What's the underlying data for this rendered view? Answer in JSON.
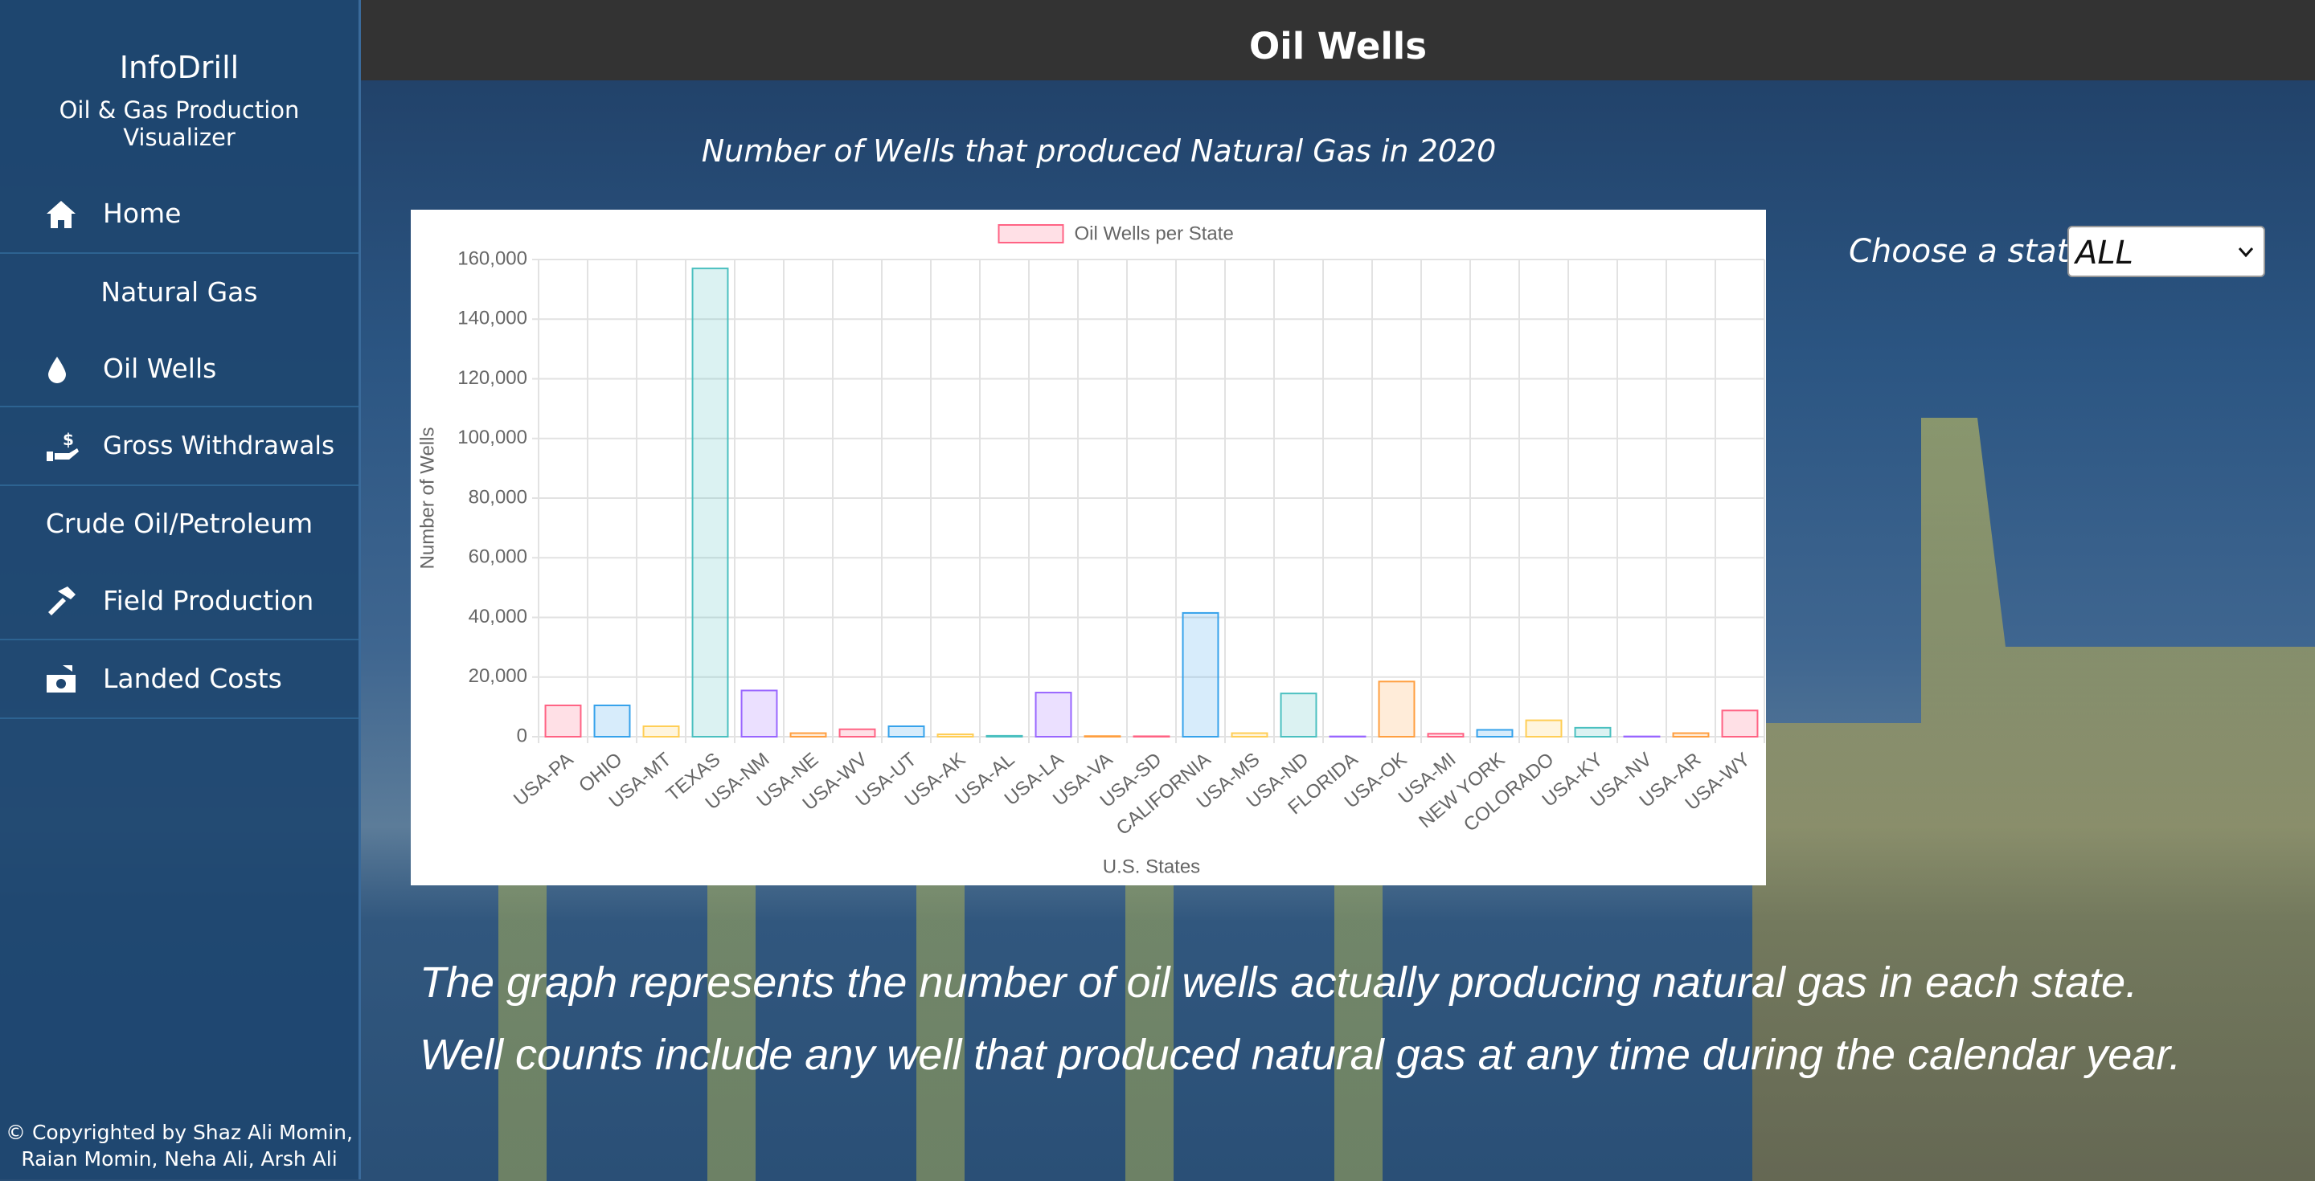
{
  "sidebar": {
    "brand": "InfoDrill",
    "tagline": "Oil & Gas Production Visualizer",
    "home": "Home",
    "section_gas": "Natural Gas",
    "oil_wells": "Oil Wells",
    "gross_withdrawals": "Gross Withdrawals",
    "section_crude": "Crude Oil/Petroleum",
    "field_production": "Field Production",
    "landed_costs": "Landed Costs",
    "copyright": [
      "© Copyrighted by Shaz Ali Momin,",
      "Raian Momin, Neha Ali, Arsh Ali"
    ]
  },
  "header": {
    "title": "Oil Wells"
  },
  "state_picker": {
    "label": "Choose a state:",
    "value": "ALL"
  },
  "description": [
    "The graph represents the number of oil wells actually producing natural gas in each state.",
    "Well counts include any well that produced natural gas at any time during the calendar year."
  ],
  "chart_data": {
    "type": "bar",
    "title": "Number of Wells that produced Natural Gas in 2020",
    "x_label": "U.S. States",
    "y_label": "Number of Wells",
    "categories": [
      "USA-PA",
      "OHIO",
      "USA-MT",
      "TEXAS",
      "USA-NM",
      "USA-NE",
      "USA-WV",
      "USA-UT",
      "USA-AK",
      "USA-AL",
      "USA-LA",
      "USA-VA",
      "USA-SD",
      "CALIFORNIA",
      "USA-MS",
      "USA-ND",
      "FLORIDA",
      "USA-OK",
      "USA-MI",
      "NEW YORK",
      "COLORADO",
      "USA-KY",
      "USA-NV",
      "USA-AR",
      "USA-WY"
    ],
    "series": [
      {
        "name": "Oil Wells per State",
        "color": "#ff6384",
        "values": [
          10500,
          10500,
          3500,
          157000,
          15500,
          1200,
          2500,
          3500,
          800,
          300,
          14800,
          200,
          150,
          41500,
          1200,
          14500,
          100,
          18500,
          1000,
          2300,
          5500,
          3000,
          100,
          1200,
          8800
        ],
        "colors": [
          "#ff6384",
          "#36a2eb",
          "#ffce56",
          "#4bc0c0",
          "#9966ff",
          "#ff9f40",
          "#ff6384",
          "#36a2eb",
          "#ffce56",
          "#4bc0c0",
          "#9966ff",
          "#ff9f40",
          "#ff6384",
          "#36a2eb",
          "#ffce56",
          "#4bc0c0",
          "#9966ff",
          "#ff9f40",
          "#ff6384",
          "#36a2eb",
          "#ffce56",
          "#4bc0c0",
          "#9966ff",
          "#ff9f40",
          "#ff6384"
        ]
      }
    ],
    "ylim": [
      0,
      160000
    ],
    "yticks": [
      0,
      {
        "value": 20000,
        "label": "20,000"
      },
      {
        "value": 40000,
        "label": "40,000"
      },
      {
        "value": 60000,
        "label": "60,000"
      },
      {
        "value": 80000,
        "label": "80,000"
      },
      {
        "value": 100000,
        "label": "100,000"
      },
      {
        "value": 120000,
        "label": "120,000"
      },
      {
        "value": 140000,
        "label": "140,000"
      },
      {
        "value": 160000,
        "label": "160,000"
      }
    ],
    "grid": true,
    "legend": "top"
  }
}
